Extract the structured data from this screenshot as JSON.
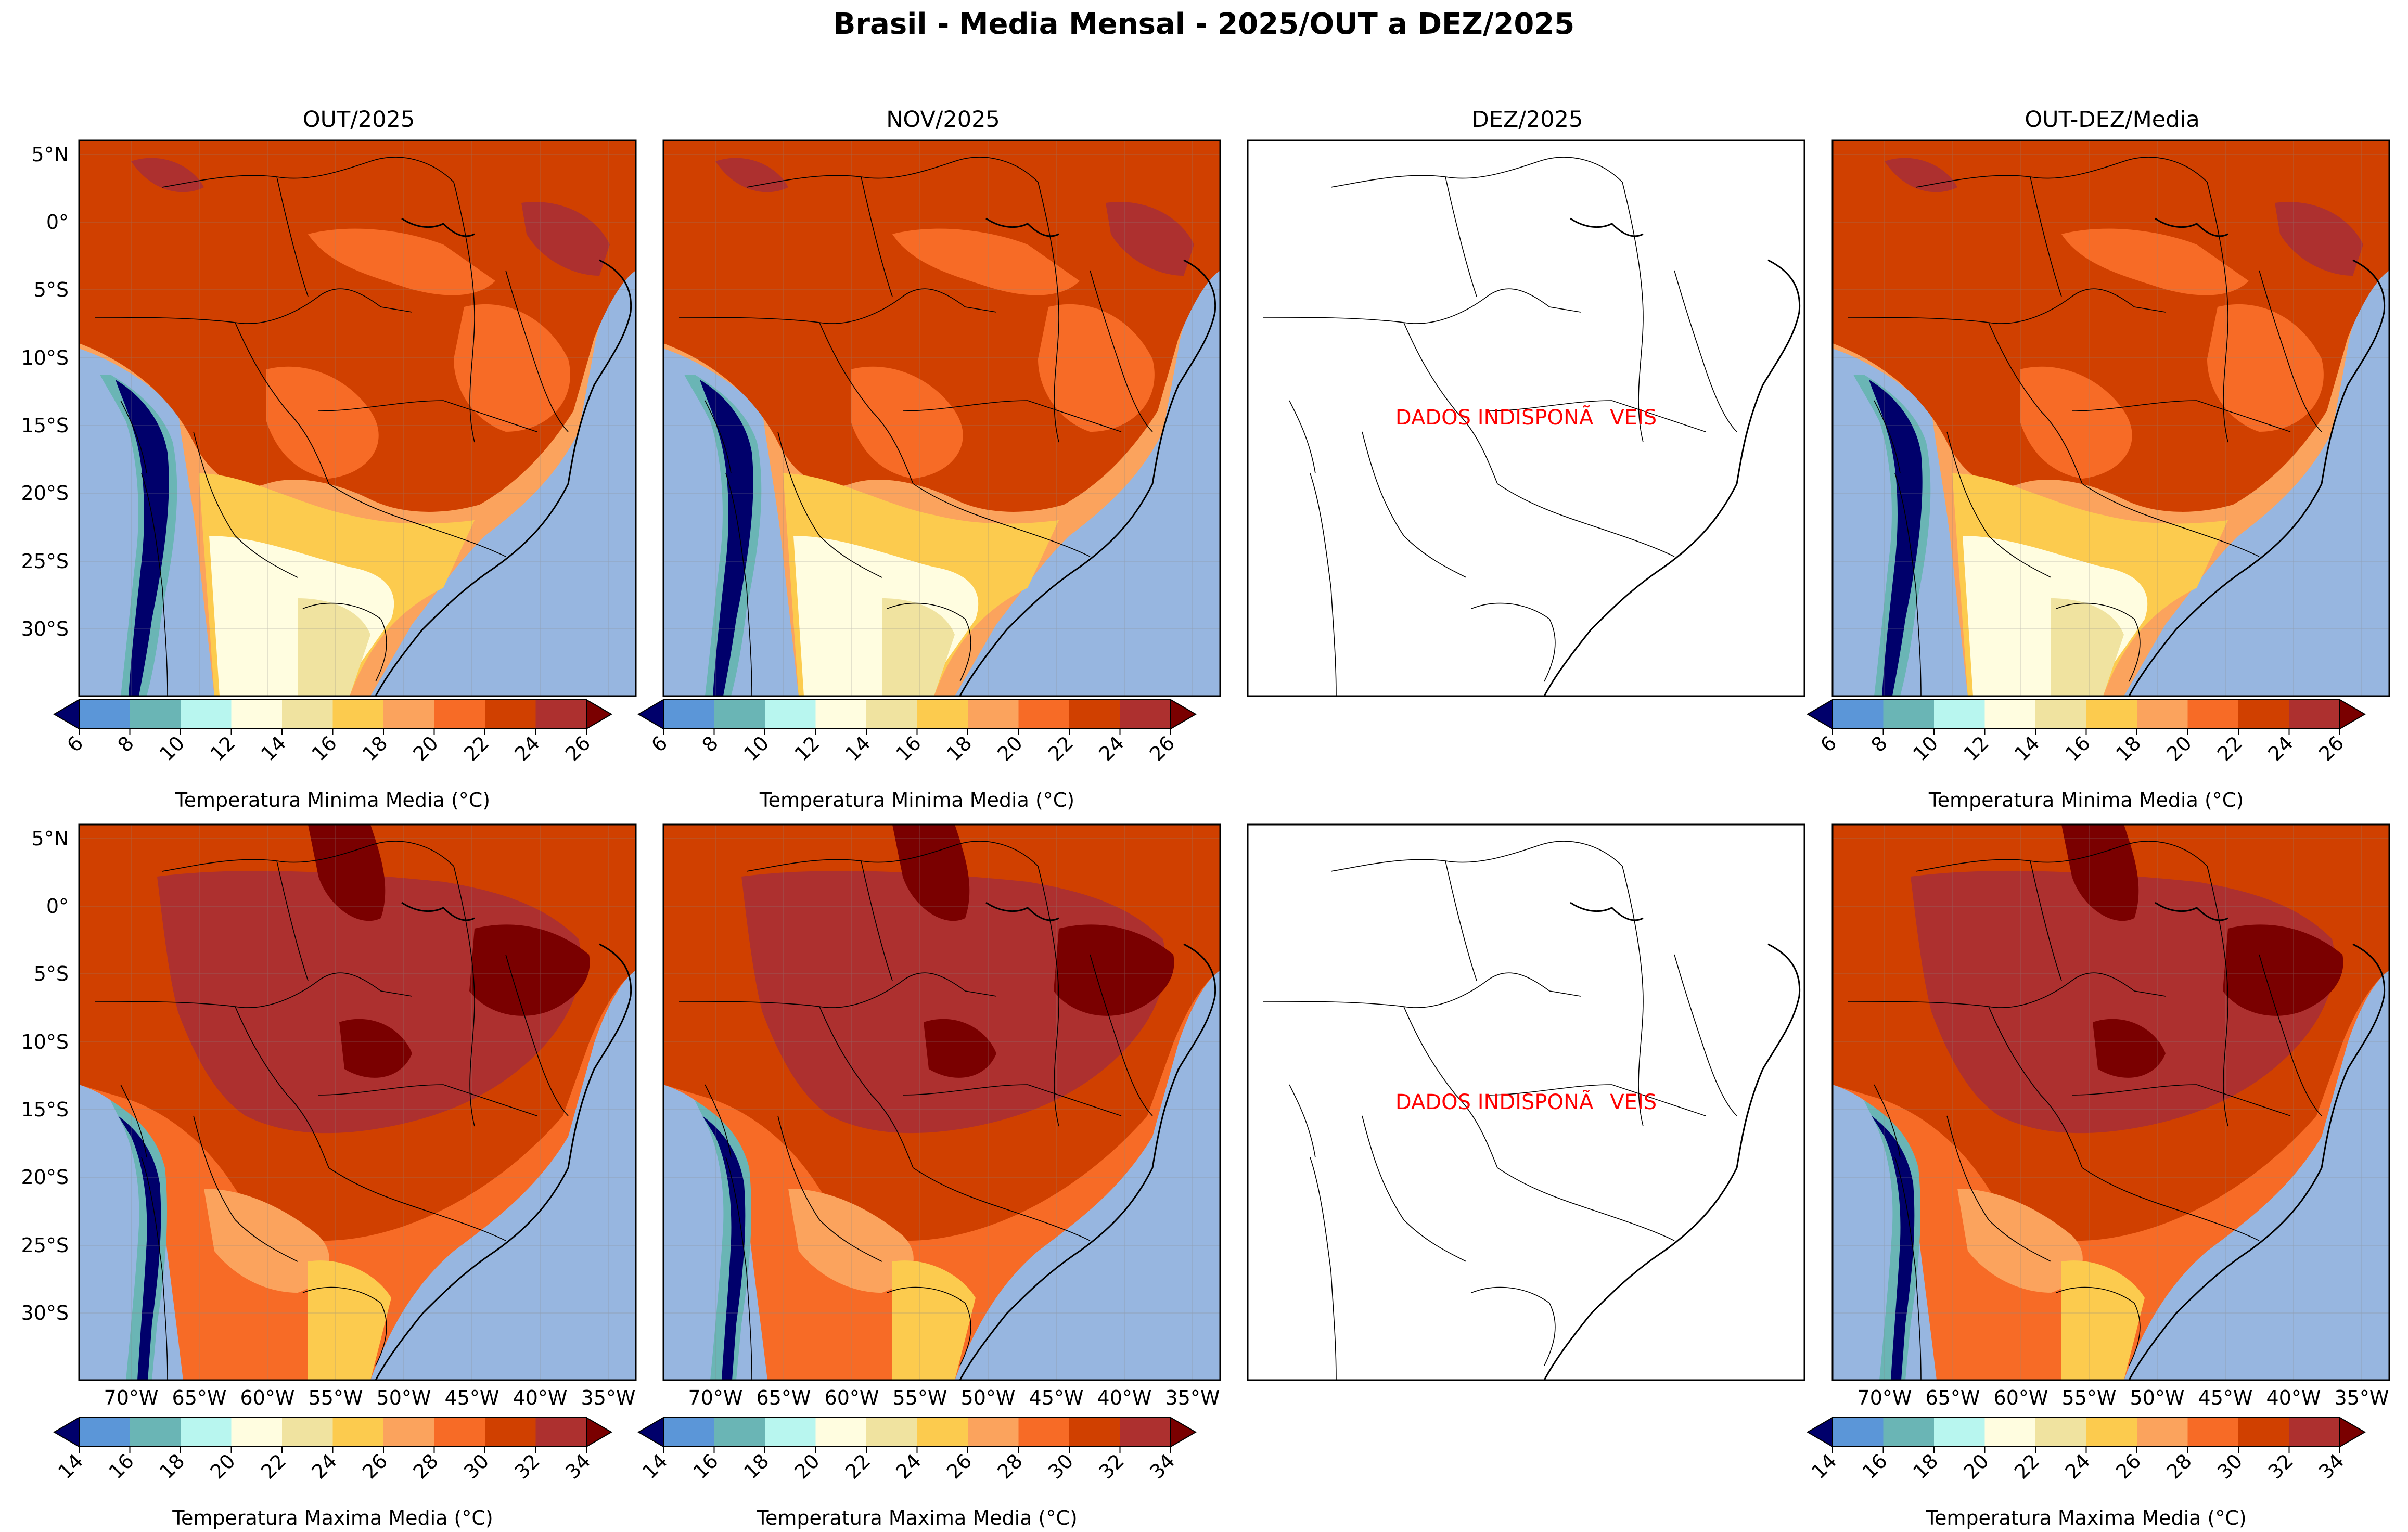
{
  "title": "Brasil - Media Mensal - 2025/OUT a DEZ/2025",
  "columns": [
    "OUT/2025",
    "NOV/2025",
    "DEZ/2025",
    "OUT-DEZ/Media"
  ],
  "unavailable_text": "DADOS INDISPONÃVEIS",
  "lat_ticks": [
    "5°N",
    "0°",
    "5°S",
    "10°S",
    "15°S",
    "20°S",
    "25°S",
    "30°S"
  ],
  "lon_ticks": [
    "70°W",
    "65°W",
    "60°W",
    "55°W",
    "50°W",
    "45°W",
    "40°W",
    "35°W"
  ],
  "colorbar_min": {
    "label": "Temperatura Minima Media ($^\\circ$C)",
    "ticks": [
      "6",
      "8",
      "10",
      "12",
      "14",
      "16",
      "18",
      "20",
      "22",
      "24",
      "26"
    ],
    "colors": [
      "#5b96d8",
      "#6ab5b5",
      "#b8f6ef",
      "#fffde0",
      "#f0e3a0",
      "#fccb4e",
      "#fba35d",
      "#f76b26",
      "#d04000",
      "#ad302f"
    ],
    "under_color": "#00006b",
    "over_color": "#7a0000"
  },
  "colorbar_max": {
    "label": "Temperatura Maxima Media ($^\\circ$C)",
    "ticks": [
      "14",
      "16",
      "18",
      "20",
      "22",
      "24",
      "26",
      "28",
      "30",
      "32",
      "34"
    ],
    "colors": [
      "#5b96d8",
      "#6ab5b5",
      "#b8f6ef",
      "#fffde0",
      "#f0e3a0",
      "#fccb4e",
      "#fba35d",
      "#f76b26",
      "#d04000",
      "#ad302f"
    ],
    "under_color": "#00006b",
    "over_color": "#7a0000"
  },
  "colors": {
    "ocean": "#97b6e0",
    "text_red": "#ff0000"
  }
}
